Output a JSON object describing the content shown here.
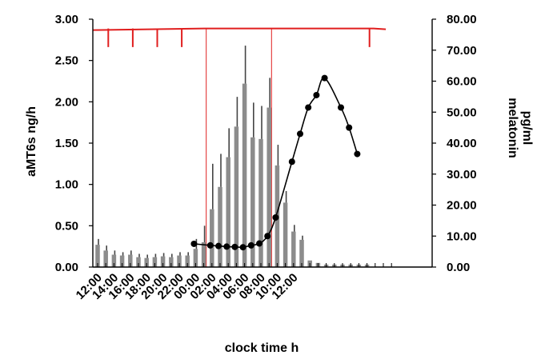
{
  "chart_data": {
    "type": "bar+line",
    "xlabel": "clock time h",
    "y_left_label": "aMT6s ng/h",
    "y_right_label": "melatonin pg/ml",
    "y_left_ticks": [
      "0.00",
      "0.50",
      "1.00",
      "1.50",
      "2.00",
      "2.50",
      "3.00"
    ],
    "y_right_ticks": [
      "0.00",
      "10.00",
      "20.00",
      "30.00",
      "40.00",
      "50.00",
      "60.00",
      "70.00",
      "80.00"
    ],
    "ylim_left": [
      0,
      3
    ],
    "ylim_right": [
      0,
      80
    ],
    "x_tick_labels": [
      "12:00",
      "14:00",
      "16:00",
      "18:00",
      "20:00",
      "22:00",
      "00:00",
      "02:00",
      "04:00",
      "06:00",
      "08:00",
      "10:00",
      "12:00"
    ],
    "xlim_hours": [
      12,
      48
    ],
    "grid": false,
    "colors": {
      "bars": "#8c8c8c",
      "line": "#000000",
      "sleep": "#e01e1e",
      "axis": "#000000"
    },
    "series": [
      {
        "type": "bar",
        "axis": "left",
        "x_hours": [
          12,
          13,
          14,
          15,
          16,
          17,
          18,
          19,
          20,
          21,
          22,
          23,
          24,
          25,
          26,
          27,
          28,
          29,
          30,
          31,
          32,
          33,
          34,
          35,
          36,
          37,
          38,
          39,
          40,
          41,
          42,
          43,
          44,
          45
        ],
        "values": [
          0.27,
          0.2,
          0.15,
          0.14,
          0.15,
          0.12,
          0.11,
          0.12,
          0.13,
          0.12,
          0.14,
          0.14,
          0.22,
          0.3,
          0.7,
          0.97,
          1.33,
          1.7,
          2.22,
          1.57,
          1.55,
          1.93,
          1.23,
          0.78,
          0.43,
          0.33,
          0.08,
          0.05,
          0.03,
          0.03,
          0.03,
          0.03,
          0.03,
          0.03
        ],
        "errors": [
          0.07,
          0.06,
          0.05,
          0.04,
          0.05,
          0.04,
          0.04,
          0.04,
          0.04,
          0.04,
          0.04,
          0.04,
          0.12,
          0.2,
          0.55,
          0.4,
          0.35,
          0.36,
          0.46,
          0.42,
          0.4,
          0.36,
          0.25,
          0.14,
          0.08,
          0.05,
          0,
          0,
          0,
          0,
          0,
          0,
          0,
          0
        ]
      },
      {
        "type": "line",
        "axis": "right",
        "x_hours": [
          12,
          13,
          14,
          15,
          16,
          17,
          18,
          19,
          20,
          21,
          22,
          23,
          24,
          25,
          26,
          27,
          28,
          29,
          30,
          31,
          32,
          33,
          34,
          35,
          36,
          37,
          38,
          39,
          40,
          41,
          42,
          43,
          44,
          45
        ],
        "values": [
          null,
          null,
          null,
          null,
          null,
          null,
          null,
          null,
          null,
          null,
          null,
          null,
          7.5,
          null,
          7.0,
          6.8,
          6.6,
          6.5,
          6.4,
          7.0,
          7.6,
          10.0,
          16.0,
          null,
          34.0,
          43.0,
          51.5,
          55.5,
          61.0,
          null,
          51.5,
          45.0,
          36.5,
          null
        ]
      }
    ],
    "sleep_line": {
      "level": 77,
      "onset_hours": [
        13.5,
        16.5,
        19.5,
        22.5
      ],
      "onset_low": 71,
      "night_start_hours": 25.5,
      "night_end_hours": 33.5,
      "final_onset_hours": 45.5
    }
  }
}
